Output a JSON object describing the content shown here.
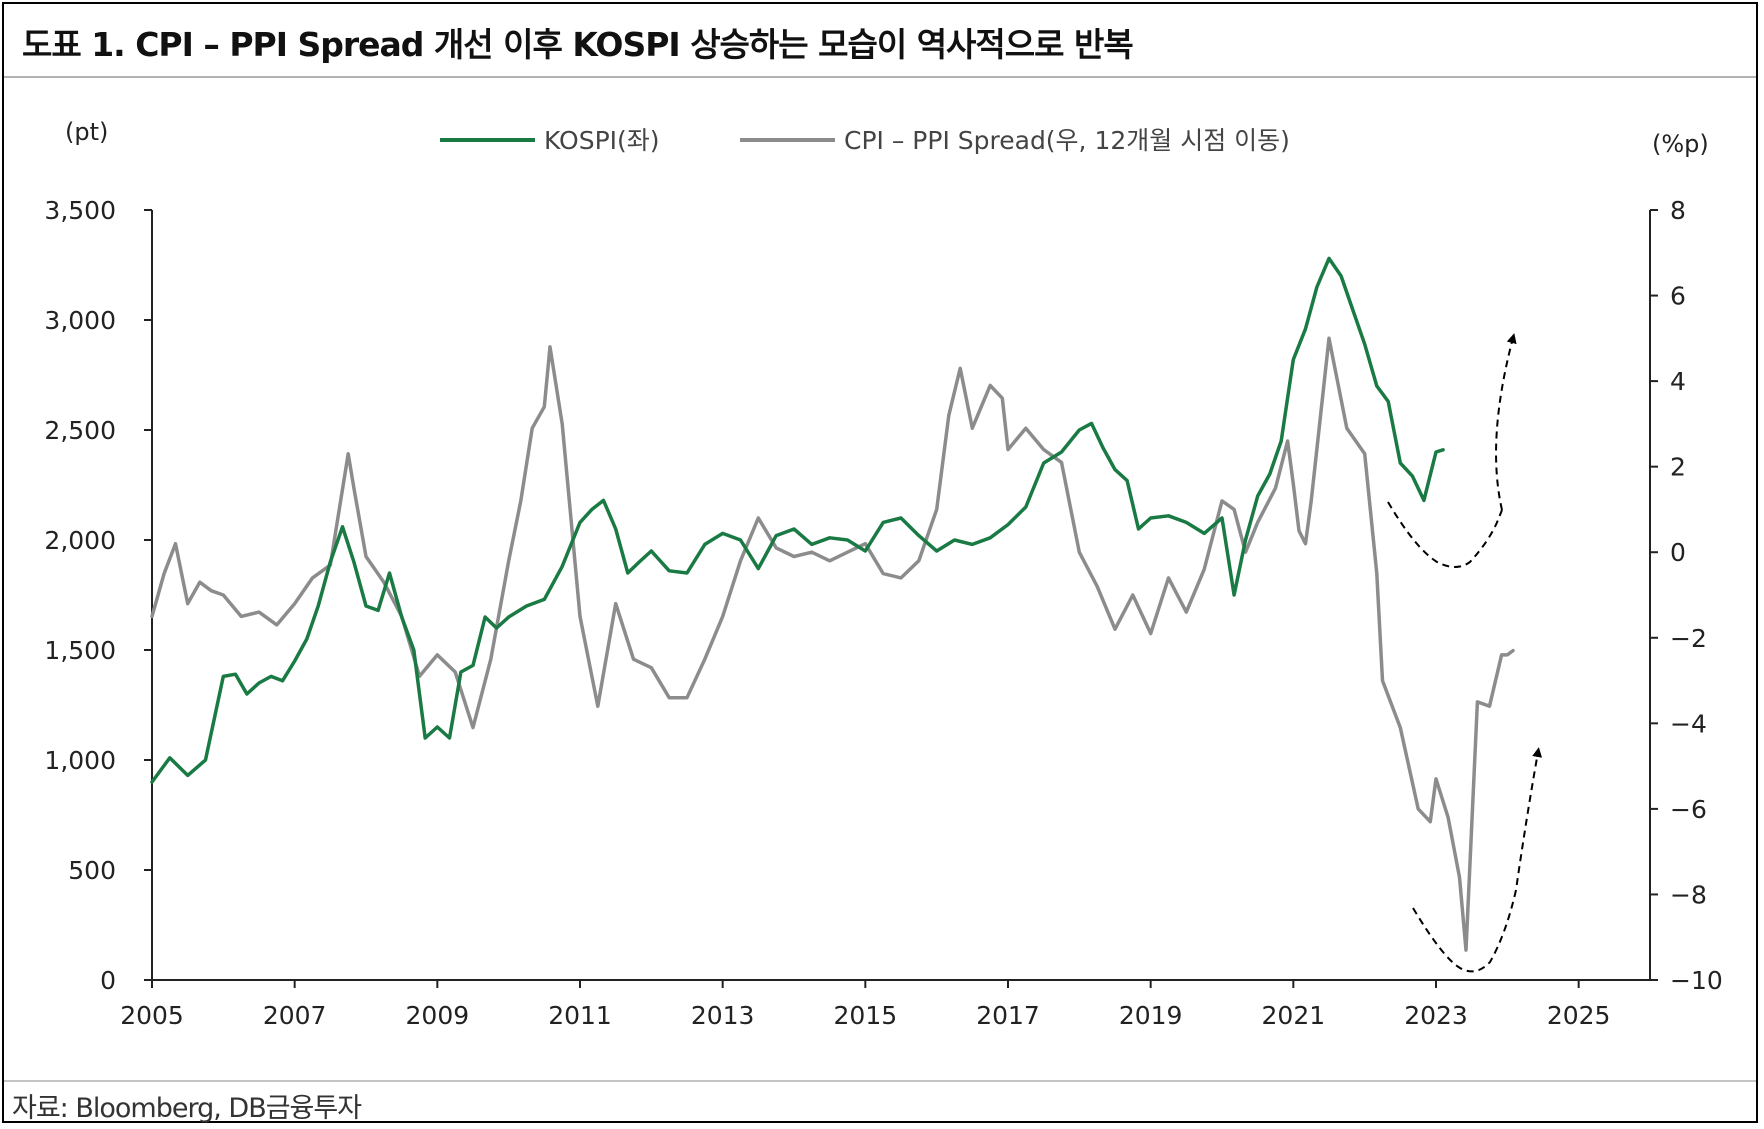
{
  "title": "도표 1. CPI – PPI Spread 개선 이후 KOSPI 상승하는 모습이 역사적으로 반복",
  "source": "자료: Bloomberg, DB금융투자",
  "colors": {
    "kospi": "#1a7a44",
    "spread": "#8c8c8c",
    "axis": "#222222",
    "arrow": "#000000"
  },
  "chart_data": {
    "type": "line",
    "title": "도표 1. CPI – PPI Spread 개선 이후 KOSPI 상승하는 모습이 역사적으로 반복",
    "xlabel": "",
    "xlim": [
      2005,
      2026
    ],
    "x_ticks": [
      "2005",
      "2007",
      "2009",
      "2011",
      "2013",
      "2015",
      "2017",
      "2019",
      "2021",
      "2023",
      "2025"
    ],
    "left_axis": {
      "unit": "(pt)",
      "ylim": [
        0,
        3500
      ],
      "ticks": [
        "0",
        "500",
        "1,000",
        "1,500",
        "2,000",
        "2,500",
        "3,000",
        "3,500"
      ]
    },
    "right_axis": {
      "unit": "(%p)",
      "ylim": [
        -10,
        8
      ],
      "ticks": [
        "−10",
        "−8",
        "−6",
        "−4",
        "−2",
        "0",
        "2",
        "4",
        "6",
        "8"
      ]
    },
    "legend_position": "top",
    "grid": false,
    "series": [
      {
        "name": "KOSPI(좌)",
        "axis": "left",
        "x": [
          2005.0,
          2005.25,
          2005.5,
          2005.75,
          2006.0,
          2006.17,
          2006.33,
          2006.5,
          2006.67,
          2006.83,
          2007.0,
          2007.17,
          2007.33,
          2007.5,
          2007.67,
          2007.83,
          2008.0,
          2008.17,
          2008.33,
          2008.5,
          2008.67,
          2008.83,
          2009.0,
          2009.17,
          2009.33,
          2009.5,
          2009.67,
          2009.83,
          2010.0,
          2010.25,
          2010.5,
          2010.75,
          2011.0,
          2011.17,
          2011.33,
          2011.5,
          2011.67,
          2011.83,
          2012.0,
          2012.25,
          2012.5,
          2012.75,
          2013.0,
          2013.25,
          2013.5,
          2013.75,
          2014.0,
          2014.25,
          2014.5,
          2014.75,
          2015.0,
          2015.25,
          2015.5,
          2015.75,
          2016.0,
          2016.25,
          2016.5,
          2016.75,
          2017.0,
          2017.25,
          2017.5,
          2017.75,
          2018.0,
          2018.17,
          2018.33,
          2018.5,
          2018.67,
          2018.83,
          2019.0,
          2019.25,
          2019.5,
          2019.75,
          2020.0,
          2020.17,
          2020.33,
          2020.5,
          2020.67,
          2020.83,
          2021.0,
          2021.17,
          2021.33,
          2021.5,
          2021.67,
          2021.83,
          2022.0,
          2022.17,
          2022.33,
          2022.5,
          2022.67,
          2022.83,
          2023.0,
          2023.1
        ],
        "values": [
          900,
          1010,
          930,
          1000,
          1380,
          1390,
          1300,
          1350,
          1380,
          1360,
          1450,
          1550,
          1700,
          1900,
          2060,
          1900,
          1700,
          1680,
          1850,
          1650,
          1500,
          1100,
          1150,
          1100,
          1400,
          1430,
          1650,
          1600,
          1650,
          1700,
          1730,
          1880,
          2080,
          2140,
          2180,
          2050,
          1850,
          1900,
          1950,
          1860,
          1850,
          1980,
          2030,
          2000,
          1870,
          2020,
          2050,
          1980,
          2010,
          2000,
          1950,
          2080,
          2100,
          2020,
          1950,
          2000,
          1980,
          2010,
          2070,
          2150,
          2350,
          2400,
          2500,
          2530,
          2420,
          2320,
          2270,
          2050,
          2100,
          2110,
          2080,
          2030,
          2100,
          1750,
          2000,
          2200,
          2300,
          2450,
          2820,
          2960,
          3150,
          3280,
          3200,
          3050,
          2890,
          2700,
          2630,
          2350,
          2290,
          2180,
          2400,
          2410
        ]
      },
      {
        "name": "CPI – PPI Spread(우, 12개월 시점 이동)",
        "axis": "right",
        "x": [
          2005.0,
          2005.17,
          2005.33,
          2005.5,
          2005.67,
          2005.83,
          2006.0,
          2006.25,
          2006.5,
          2006.75,
          2007.0,
          2007.25,
          2007.5,
          2007.75,
          2007.83,
          2008.0,
          2008.25,
          2008.5,
          2008.75,
          2009.0,
          2009.25,
          2009.5,
          2009.75,
          2010.0,
          2010.17,
          2010.33,
          2010.5,
          2010.58,
          2010.75,
          2011.0,
          2011.25,
          2011.5,
          2011.75,
          2012.0,
          2012.25,
          2012.5,
          2012.75,
          2013.0,
          2013.25,
          2013.5,
          2013.75,
          2014.0,
          2014.25,
          2014.5,
          2014.75,
          2015.0,
          2015.25,
          2015.5,
          2015.75,
          2016.0,
          2016.17,
          2016.33,
          2016.5,
          2016.75,
          2016.92,
          2017.0,
          2017.25,
          2017.5,
          2017.75,
          2018.0,
          2018.25,
          2018.5,
          2018.75,
          2019.0,
          2019.25,
          2019.5,
          2019.75,
          2020.0,
          2020.17,
          2020.33,
          2020.5,
          2020.75,
          2020.92,
          2021.0,
          2021.08,
          2021.17,
          2021.25,
          2021.5,
          2021.75,
          2022.0,
          2022.17,
          2022.25,
          2022.5,
          2022.75,
          2022.92,
          2023.0,
          2023.17,
          2023.33,
          2023.42,
          2023.58,
          2023.75,
          2023.92,
          2024.0,
          2024.08
        ],
        "values": [
          -1.5,
          -0.5,
          0.2,
          -1.2,
          -0.7,
          -0.9,
          -1.0,
          -1.5,
          -1.4,
          -1.7,
          -1.2,
          -0.6,
          -0.3,
          2.3,
          1.5,
          -0.1,
          -0.7,
          -1.5,
          -2.9,
          -2.4,
          -2.8,
          -4.1,
          -2.5,
          -0.2,
          1.2,
          2.9,
          3.4,
          4.8,
          3.0,
          -1.5,
          -3.6,
          -1.2,
          -2.5,
          -2.7,
          -3.4,
          -3.4,
          -2.5,
          -1.5,
          -0.2,
          0.8,
          0.1,
          -0.1,
          0.0,
          -0.2,
          0.0,
          0.2,
          -0.5,
          -0.6,
          -0.2,
          1.0,
          3.2,
          4.3,
          2.9,
          3.9,
          3.6,
          2.4,
          2.9,
          2.4,
          2.1,
          0.0,
          -0.8,
          -1.8,
          -1.0,
          -1.9,
          -0.6,
          -1.4,
          -0.4,
          1.2,
          1.0,
          0.0,
          0.7,
          1.5,
          2.6,
          1.6,
          0.5,
          0.2,
          1.2,
          5.0,
          2.9,
          2.3,
          -0.5,
          -3.0,
          -4.1,
          -6.0,
          -6.3,
          -5.3,
          -6.2,
          -7.6,
          -9.3,
          -3.5,
          -3.6,
          -2.4,
          -2.4,
          -2.3
        ]
      }
    ]
  }
}
